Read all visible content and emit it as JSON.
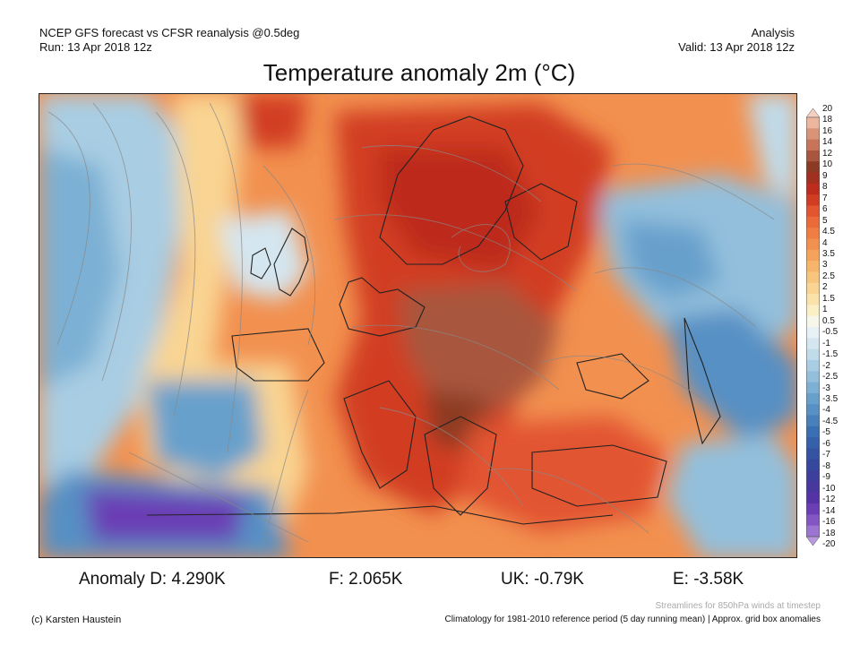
{
  "header": {
    "line1_left": "NCEP GFS forecast vs CFSR reanalysis @0.5deg",
    "line2_left": "Run: 13 Apr 2018 12z",
    "line1_right": "Analysis",
    "line2_right": "Valid: 13 Apr 2018 12z"
  },
  "title": "Temperature anomaly 2m (°C)",
  "colorbar": {
    "labels": [
      "20",
      "18",
      "16",
      "14",
      "12",
      "10",
      "9",
      "8",
      "7",
      "6",
      "5",
      "4.5",
      "4",
      "3.5",
      "3",
      "2.5",
      "2",
      "1.5",
      "1",
      "0.5",
      "-0.5",
      "-1",
      "-1.5",
      "-2",
      "-2.5",
      "-3",
      "-3.5",
      "-4",
      "-4.5",
      "-5",
      "-6",
      "-7",
      "-8",
      "-9",
      "-10",
      "-12",
      "-14",
      "-16",
      "-18",
      "-20"
    ],
    "colors": [
      "#f5cfc0",
      "#ebb59e",
      "#d99478",
      "#c77459",
      "#a8563d",
      "#8b3b24",
      "#a23020",
      "#bd2c1c",
      "#d23c22",
      "#e25530",
      "#ea6a3a",
      "#ef7d44",
      "#f2904f",
      "#f5a35c",
      "#f7b56c",
      "#f8c57f",
      "#f9d492",
      "#fae2a8",
      "#fbefc6",
      "#f6f6ea",
      "#e8f1f5",
      "#d4e6f0",
      "#c0dbea",
      "#a9cde3",
      "#93bfdc",
      "#7cb0d4",
      "#68a0cc",
      "#5690c4",
      "#4780bb",
      "#3b6fb3",
      "#3560aa",
      "#3453a3",
      "#35489e",
      "#3d3f9c",
      "#48389e",
      "#5532a6",
      "#6a3eb5",
      "#8356c3",
      "#9c74d1",
      "#b899de"
    ]
  },
  "stats": [
    {
      "label": "Anomaly D: 4.290K"
    },
    {
      "label": "F: 2.065K"
    },
    {
      "label": "UK: -0.79K"
    },
    {
      "label": "E: -3.58K"
    }
  ],
  "footer": {
    "streamlines_note": "Streamlines for 850hPa winds at timestep",
    "copyright": "(c) Karsten Haustein",
    "climatology_note": "Climatology for 1981-2010 reference period (5 day running mean) | Approx. grid box anomalies"
  }
}
